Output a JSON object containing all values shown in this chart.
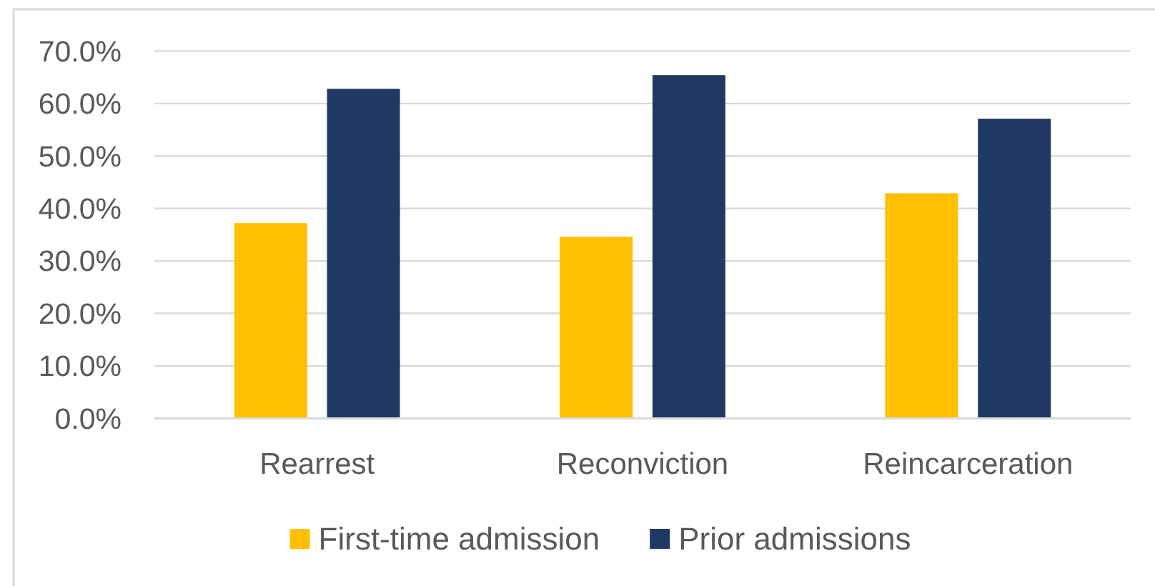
{
  "chart_data": {
    "type": "bar",
    "categories": [
      "Rearrest",
      "Reconviction",
      "Reincarceration"
    ],
    "series": [
      {
        "name": "First-time admission",
        "color": "#ffc000",
        "values": [
          37.2,
          34.6,
          42.9
        ]
      },
      {
        "name": "Prior admissions",
        "color": "#1f3864",
        "values": [
          62.8,
          65.4,
          57.1
        ]
      }
    ],
    "ylim": [
      0,
      70
    ],
    "yticks": [
      {
        "value": 0,
        "label": "0.0%"
      },
      {
        "value": 10,
        "label": "10.0%"
      },
      {
        "value": 20,
        "label": "20.0%"
      },
      {
        "value": 30,
        "label": "30.0%"
      },
      {
        "value": 40,
        "label": "40.0%"
      },
      {
        "value": 50,
        "label": "50.0%"
      },
      {
        "value": 60,
        "label": "60.0%"
      },
      {
        "value": 70,
        "label": "70.0%"
      }
    ],
    "grid": "y",
    "legend": "bottom"
  }
}
